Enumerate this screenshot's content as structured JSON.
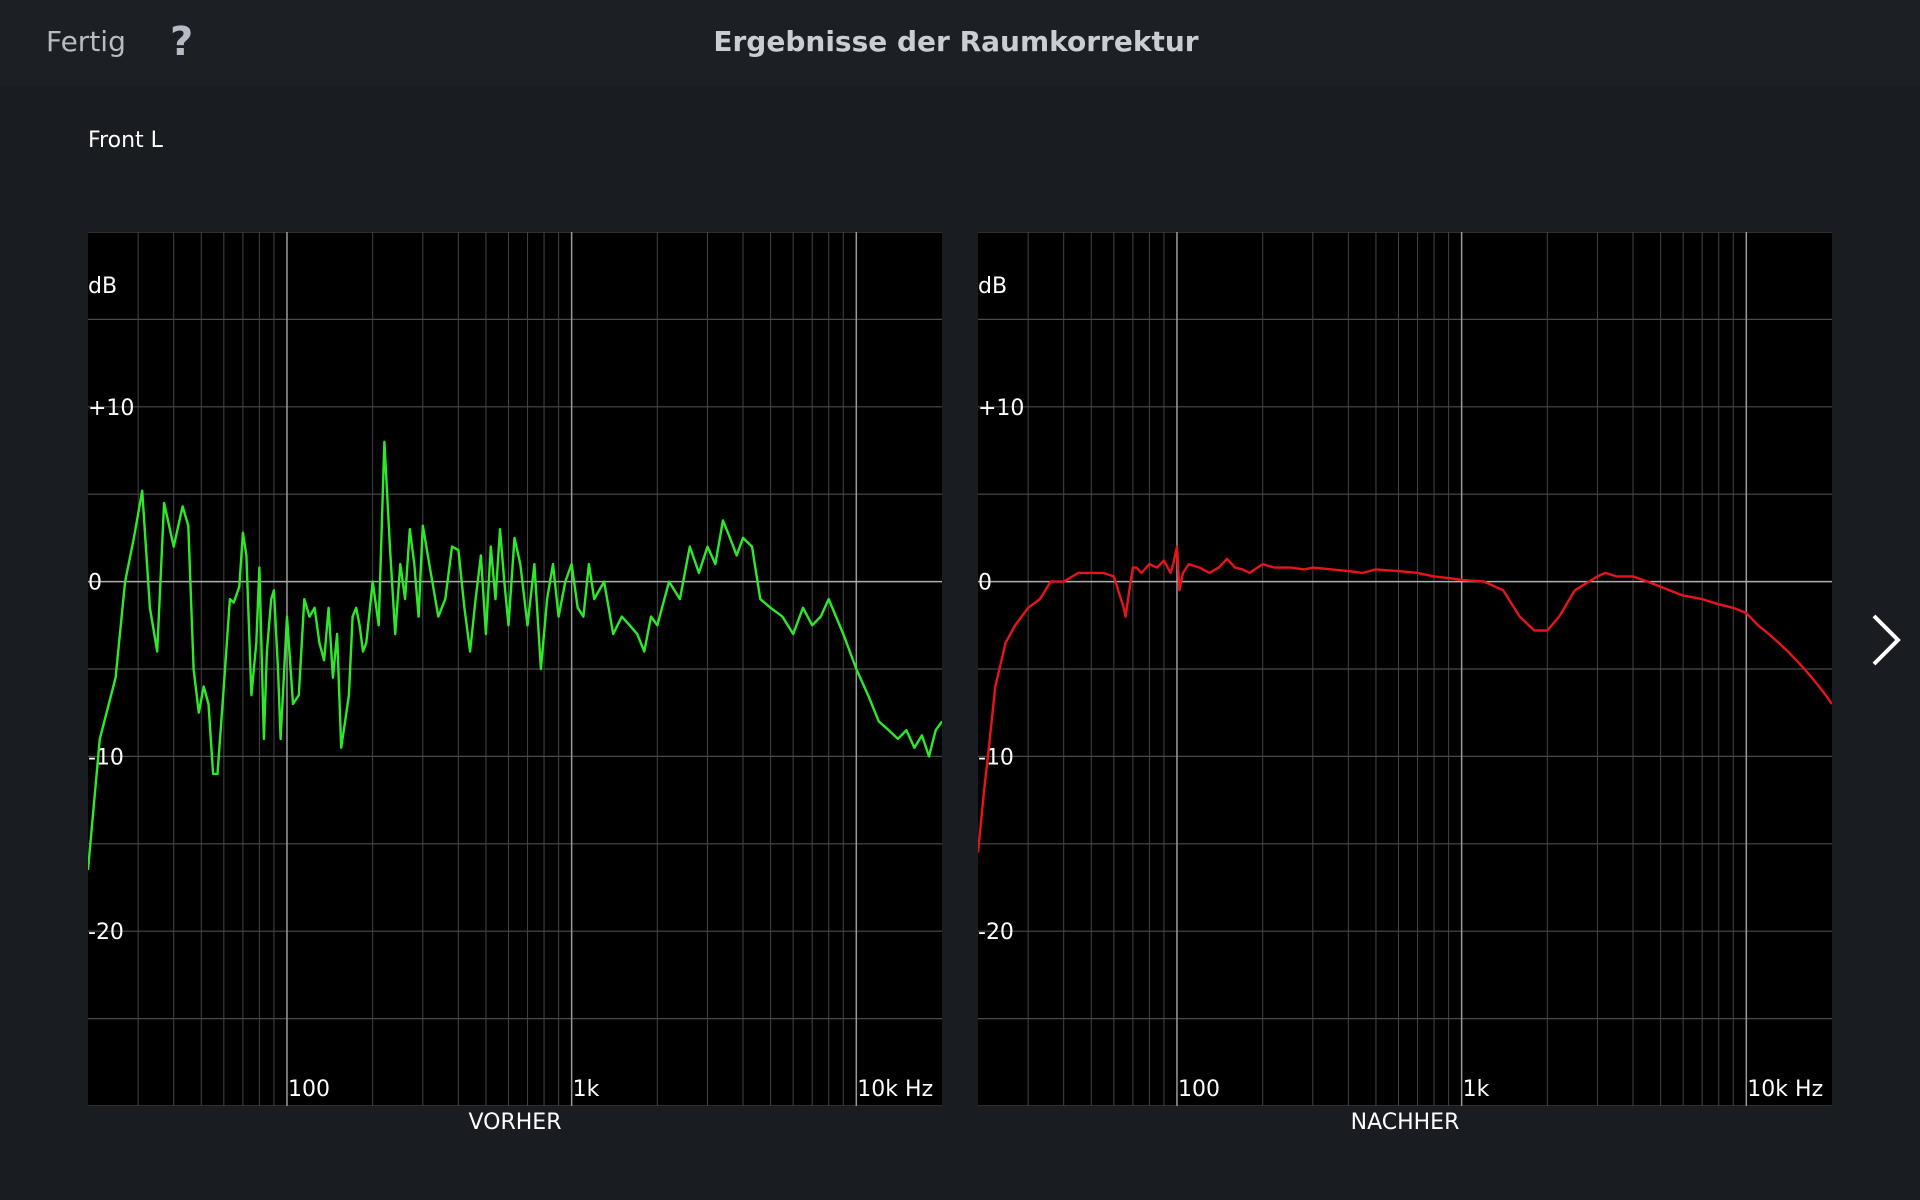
{
  "header": {
    "done_label": "Fertig",
    "help_label": "?",
    "title": "Ergebnisse der Raumkorrektur"
  },
  "channel_label": "Front L",
  "navigation": {
    "next_icon": "chevron-right-icon"
  },
  "chart_data": [
    {
      "type": "line",
      "title": "VORHER",
      "xlabel": "Hz",
      "ylabel": "dB",
      "x_scale": "log",
      "xlim": [
        20,
        20000
      ],
      "ylim": [
        -30,
        20
      ],
      "x_ticks": [
        100,
        1000,
        10000
      ],
      "x_tick_labels": [
        "100",
        "1k",
        "10k Hz"
      ],
      "y_ticks": [
        10,
        0,
        -10,
        -20
      ],
      "y_tick_labels": [
        "+10",
        "0",
        "-10",
        "-20"
      ],
      "grid": true,
      "color": "#2ee82a",
      "series": [
        {
          "x": [
            20,
            22,
            25,
            27,
            29,
            31,
            33,
            35,
            37,
            40,
            43,
            45,
            47,
            49,
            51,
            53,
            55,
            57,
            60,
            63,
            65,
            68,
            70,
            72,
            75,
            78,
            80,
            83,
            85,
            88,
            90,
            93,
            95,
            100,
            105,
            110,
            115,
            120,
            125,
            130,
            135,
            140,
            145,
            150,
            155,
            160,
            165,
            170,
            175,
            180,
            185,
            190,
            200,
            210,
            220,
            230,
            240,
            250,
            260,
            270,
            280,
            290,
            300,
            320,
            340,
            360,
            380,
            400,
            420,
            440,
            460,
            480,
            500,
            520,
            540,
            560,
            580,
            600,
            630,
            660,
            700,
            740,
            780,
            820,
            860,
            900,
            950,
            1000,
            1050,
            1100,
            1150,
            1200,
            1300,
            1400,
            1500,
            1600,
            1700,
            1800,
            1900,
            2000,
            2200,
            2400,
            2600,
            2800,
            3000,
            3200,
            3400,
            3600,
            3800,
            4000,
            4300,
            4600,
            5000,
            5500,
            6000,
            6500,
            7000,
            7500,
            8000,
            9000,
            10000,
            11000,
            12000,
            13000,
            14000,
            15000,
            16000,
            17000,
            18000,
            19000,
            20000
          ],
          "y": [
            -16.5,
            -9,
            -5.5,
            0,
            2.5,
            5.2,
            -1.5,
            -4,
            4.5,
            2,
            4.3,
            3.2,
            -5,
            -7.5,
            -6,
            -7,
            -11,
            -11,
            -6,
            -1,
            -1.2,
            -0.3,
            2.8,
            1.5,
            -6.5,
            -3.5,
            0.8,
            -9,
            -4,
            -1,
            -0.5,
            -5,
            -9,
            -2,
            -7,
            -6.5,
            -1,
            -2,
            -1.5,
            -3.5,
            -4.5,
            -1.5,
            -5.5,
            -3,
            -9.5,
            -8,
            -6.5,
            -2,
            -1.5,
            -2.5,
            -4,
            -3.5,
            0,
            -2.5,
            8,
            2,
            -3,
            1,
            -1,
            3,
            1,
            -2,
            3.2,
            0.5,
            -2,
            -1,
            2,
            1.8,
            -1.5,
            -4,
            -1,
            1.5,
            -3,
            2,
            -1,
            3,
            0,
            -2.5,
            2.5,
            1,
            -2.5,
            1,
            -5,
            -1,
            1,
            -2,
            0,
            1,
            -1.5,
            -2,
            1,
            -1,
            0,
            -3,
            -2,
            -2.5,
            -3,
            -4,
            -2,
            -2.5,
            0,
            -1,
            2,
            0.5,
            2,
            1,
            3.5,
            2.5,
            1.5,
            2.5,
            2,
            -1,
            -1.5,
            -2,
            -3,
            -1.5,
            -2.5,
            -2,
            -1,
            -3,
            -5,
            -6.5,
            -8,
            -8.5,
            -9,
            -8.5,
            -9.5,
            -8.8,
            -10,
            -8.5,
            -8
          ]
        }
      ]
    },
    {
      "type": "line",
      "title": "NACHHER",
      "xlabel": "Hz",
      "ylabel": "dB",
      "x_scale": "log",
      "xlim": [
        20,
        20000
      ],
      "ylim": [
        -30,
        20
      ],
      "x_ticks": [
        100,
        1000,
        10000
      ],
      "x_tick_labels": [
        "100",
        "1k",
        "10k Hz"
      ],
      "y_ticks": [
        10,
        0,
        -10,
        -20
      ],
      "y_tick_labels": [
        "+10",
        "0",
        "-10",
        "-20"
      ],
      "grid": true,
      "color": "#e8141b",
      "series": [
        {
          "x": [
            20,
            21,
            22,
            23,
            25,
            27,
            30,
            33,
            36,
            40,
            45,
            50,
            55,
            60,
            65,
            66,
            68,
            70,
            72,
            75,
            80,
            85,
            90,
            95,
            97,
            100,
            102,
            105,
            110,
            120,
            130,
            140,
            150,
            160,
            170,
            180,
            200,
            220,
            250,
            280,
            300,
            350,
            400,
            450,
            500,
            600,
            700,
            800,
            900,
            1000,
            1200,
            1400,
            1600,
            1800,
            2000,
            2200,
            2500,
            2800,
            3000,
            3200,
            3500,
            4000,
            4500,
            5000,
            6000,
            7000,
            8000,
            9000,
            10000,
            11000,
            12000,
            13000,
            14000,
            15000,
            16000,
            17000,
            18000,
            19000,
            20000
          ],
          "y": [
            -15.5,
            -12,
            -9,
            -6,
            -3.5,
            -2.5,
            -1.5,
            -1,
            0,
            0,
            0.5,
            0.5,
            0.5,
            0.3,
            -1.5,
            -2,
            -0.5,
            0.8,
            0.8,
            0.5,
            1,
            0.8,
            1.2,
            0.5,
            1,
            2,
            -0.5,
            0.5,
            1,
            0.8,
            0.5,
            0.8,
            1.3,
            0.8,
            0.7,
            0.5,
            1,
            0.8,
            0.8,
            0.7,
            0.8,
            0.7,
            0.6,
            0.5,
            0.7,
            0.6,
            0.5,
            0.3,
            0.2,
            0.1,
            0,
            -0.5,
            -2,
            -2.8,
            -2.8,
            -2,
            -0.5,
            0,
            0.3,
            0.5,
            0.3,
            0.3,
            0,
            -0.3,
            -0.8,
            -1,
            -1.3,
            -1.5,
            -1.8,
            -2.5,
            -3,
            -3.5,
            -4,
            -4.5,
            -5,
            -5.5,
            -6,
            -6.5,
            -7
          ]
        }
      ]
    }
  ]
}
